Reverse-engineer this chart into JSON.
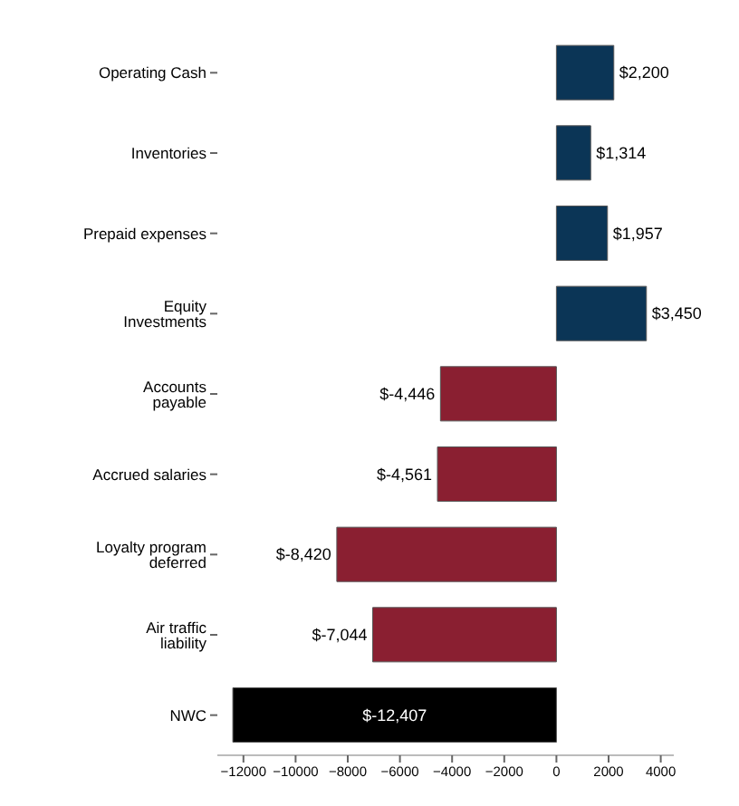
{
  "chart_data": {
    "type": "bar",
    "orientation": "horizontal",
    "categories": [
      "Operating Cash",
      "Inventories",
      "Prepaid expenses",
      "Equity Investments",
      "Accounts payable",
      "Accrued salaries",
      "Loyalty program deferred",
      "Air traffic liability",
      "NWC"
    ],
    "values": [
      2200,
      1314,
      1957,
      3450,
      -4446,
      -4561,
      -8420,
      -7044,
      -12407
    ],
    "value_labels": [
      "$2,200",
      "$1,314",
      "$1,957",
      "$3,450",
      "$-4,446",
      "$-4,561",
      "$-8,420",
      "$-7,044",
      "$-12,407"
    ],
    "colors": [
      "#0b3556",
      "#0b3556",
      "#0b3556",
      "#0b3556",
      "#8a1f31",
      "#8a1f31",
      "#8a1f31",
      "#8a1f31",
      "#000000"
    ],
    "xlim": [
      -13000,
      4500
    ],
    "xticks": [
      {
        "value": -12000,
        "label": "−12000"
      },
      {
        "value": -10000,
        "label": "−10000"
      },
      {
        "value": -8000,
        "label": "−8000"
      },
      {
        "value": -6000,
        "label": "−6000"
      },
      {
        "value": -4000,
        "label": "−4000"
      },
      {
        "value": -2000,
        "label": "−2000"
      },
      0,
      2000,
      4000
    ],
    "grid": false,
    "legend": false
  }
}
